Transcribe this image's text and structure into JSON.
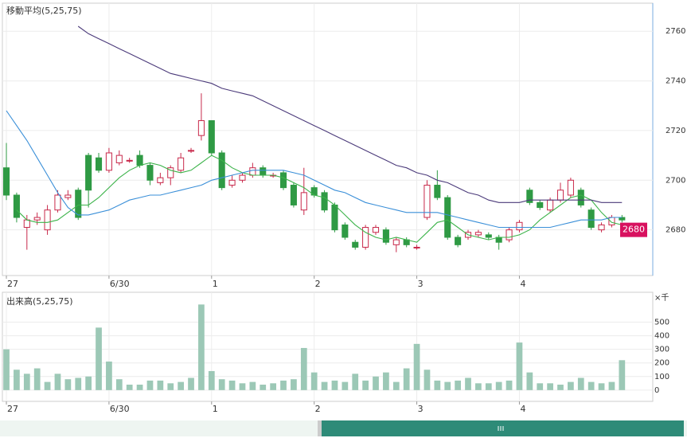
{
  "chart_data": [
    {
      "type": "candlestick",
      "title": "移動平均(5,25,75)",
      "x": [
        0,
        0.1,
        0.2,
        0.3,
        0.4,
        0.5,
        0.6,
        0.7,
        0.8,
        0.9,
        1,
        1.1,
        1.2,
        1.3,
        1.4,
        1.5,
        1.6,
        1.7,
        1.8,
        1.9,
        2,
        2.1,
        2.2,
        2.3,
        2.4,
        2.5,
        2.6,
        2.7,
        2.8,
        2.9,
        3,
        3.1,
        3.2,
        3.3,
        3.4,
        3.5,
        3.6,
        3.7,
        3.8,
        3.9,
        4,
        4.1,
        4.2,
        4.3,
        4.4,
        4.5,
        4.6,
        4.7,
        4.8,
        4.9,
        5,
        5.1,
        5.2,
        5.3,
        5.4,
        5.5,
        5.6,
        5.7,
        5.8,
        5.9,
        6
      ],
      "open": [
        2705,
        2694,
        2681,
        2684,
        2680,
        2688,
        2693,
        2696,
        2710,
        2709,
        2704,
        2707,
        2708,
        2710,
        2706,
        2699,
        2701,
        2704,
        2712,
        2718,
        2724,
        2711,
        2698,
        2700,
        2702,
        2705,
        2702,
        2703,
        2698,
        2688,
        2697,
        2695,
        2690,
        2682,
        2675,
        2673,
        2679,
        2680,
        2674,
        2676,
        2673,
        2685,
        2698,
        2693,
        2677,
        2677,
        2678,
        2678,
        2677,
        2676,
        2680,
        2696,
        2691,
        2688,
        2692,
        2694,
        2696,
        2688,
        2680,
        2682,
        2685
      ],
      "high": [
        2715,
        2695,
        2686,
        2687,
        2690,
        2696,
        2696,
        2697,
        2711,
        2711,
        2713,
        2712,
        2709,
        2712,
        2707,
        2703,
        2706,
        2711,
        2713,
        2735,
        2724,
        2712,
        2702,
        2703,
        2707,
        2706,
        2703,
        2704,
        2699,
        2705,
        2698,
        2696,
        2691,
        2683,
        2676,
        2682,
        2682,
        2681,
        2677,
        2677,
        2674,
        2700,
        2704,
        2694,
        2678,
        2680,
        2680,
        2679,
        2678,
        2681,
        2684,
        2697,
        2692,
        2693,
        2699,
        2701,
        2697,
        2689,
        2683,
        2686,
        2686
      ],
      "low": [
        2692,
        2683,
        2672,
        2682,
        2678,
        2687,
        2692,
        2684,
        2689,
        2703,
        2703,
        2706,
        2707,
        2705,
        2698,
        2698,
        2698,
        2703,
        2711,
        2716,
        2710,
        2696,
        2697,
        2699,
        2701,
        2701,
        2701,
        2696,
        2689,
        2686,
        2693,
        2687,
        2679,
        2676,
        2672,
        2672,
        2678,
        2674,
        2671,
        2673,
        2672,
        2684,
        2692,
        2676,
        2673,
        2676,
        2677,
        2676,
        2672,
        2675,
        2679,
        2690,
        2688,
        2687,
        2691,
        2693,
        2689,
        2680,
        2679,
        2681,
        2683
      ],
      "close": [
        2694,
        2685,
        2684,
        2685,
        2688,
        2694,
        2694,
        2685,
        2696,
        2704,
        2711,
        2710,
        2708,
        2706,
        2700,
        2701,
        2705,
        2709,
        2712,
        2724,
        2711,
        2697,
        2700,
        2702,
        2705,
        2702,
        2702,
        2697,
        2690,
        2695,
        2694,
        2688,
        2680,
        2677,
        2673,
        2681,
        2681,
        2675,
        2676,
        2674,
        2673,
        2698,
        2693,
        2677,
        2674,
        2679,
        2679,
        2677,
        2675,
        2680,
        2683,
        2691,
        2689,
        2692,
        2696,
        2700,
        2690,
        2681,
        2682,
        2685,
        2684
      ],
      "up_color": "#c8284a",
      "down_color": "#2f9a44",
      "series": [
        {
          "color": "#3cb34a",
          "values": [
            null,
            2688,
            2684,
            2683,
            2683,
            2684,
            2687,
            2690,
            2690,
            2693,
            2697,
            2701,
            2704,
            2706,
            2707,
            2706,
            2704,
            2703,
            2704,
            2707,
            2710,
            2708,
            2705,
            2703,
            2702,
            2702,
            2702,
            2701,
            2699,
            2697,
            2694,
            2693,
            2690,
            2686,
            2682,
            2679,
            2677,
            2676,
            2677,
            2676,
            2675,
            2679,
            2683,
            2684,
            2681,
            2678,
            2677,
            2676,
            2677,
            2677,
            2678,
            2680,
            2684,
            2687,
            2690,
            2693,
            2694,
            2692,
            2687,
            2683,
            2682
          ]
        },
        {
          "color": "#3a8fd8",
          "values": [
            2728,
            2722,
            2716,
            2709,
            2702,
            2695,
            2689,
            2686,
            2686,
            2687,
            2688,
            2690,
            2692,
            2693,
            2694,
            2694,
            2695,
            2696,
            2697,
            2698,
            2700,
            2701,
            2702,
            2703,
            2704,
            2704,
            2704,
            2704,
            2703,
            2702,
            2700,
            2698,
            2696,
            2695,
            2693,
            2691,
            2690,
            2689,
            2688,
            2687,
            2687,
            2687,
            2687,
            2686,
            2685,
            2684,
            2683,
            2682,
            2681,
            2681,
            2681,
            2681,
            2681,
            2681,
            2682,
            2683,
            2684,
            2684,
            2684,
            2685,
            2685
          ]
        },
        {
          "color": "#4b3a7a",
          "values": [
            null,
            null,
            null,
            null,
            null,
            null,
            null,
            2762,
            2759,
            2757,
            2755,
            2753,
            2751,
            2749,
            2747,
            2745,
            2743,
            2742,
            2741,
            2740,
            2739,
            2737,
            2736,
            2735,
            2734,
            2732,
            2730,
            2728,
            2726,
            2724,
            2722,
            2720,
            2718,
            2716,
            2714,
            2712,
            2710,
            2708,
            2706,
            2705,
            2703,
            2702,
            2700,
            2699,
            2697,
            2695,
            2694,
            2692,
            2691,
            2691,
            2691,
            2692,
            2692,
            2692,
            2692,
            2692,
            2692,
            2692,
            2691,
            2691,
            2691
          ]
        }
      ],
      "current_price": 2680,
      "current_price_color": "#d8115f",
      "xlim": [
        -0.039,
        6.3
      ],
      "xticks": [
        {
          "value": 0,
          "label": "27"
        },
        {
          "value": 1,
          "label": "6/30"
        },
        {
          "value": 2,
          "label": "1"
        },
        {
          "value": 3,
          "label": "2"
        },
        {
          "value": 4,
          "label": "3"
        },
        {
          "value": 5,
          "label": "4"
        }
      ],
      "ylim": [
        2661.6,
        2771.3
      ],
      "yticks": [
        2680,
        2700,
        2720,
        2740,
        2760
      ],
      "grid": true
    },
    {
      "type": "bar",
      "title": "出来高(5,25,75)",
      "y_unit": "×千",
      "color": "#9cc8b6",
      "x": [
        0,
        0.1,
        0.2,
        0.3,
        0.4,
        0.5,
        0.6,
        0.7,
        0.8,
        0.9,
        1,
        1.1,
        1.2,
        1.3,
        1.4,
        1.5,
        1.6,
        1.7,
        1.8,
        1.9,
        2,
        2.1,
        2.2,
        2.3,
        2.4,
        2.5,
        2.6,
        2.7,
        2.8,
        2.9,
        3,
        3.1,
        3.2,
        3.3,
        3.4,
        3.5,
        3.6,
        3.7,
        3.8,
        3.9,
        4,
        4.1,
        4.2,
        4.3,
        4.4,
        4.5,
        4.6,
        4.7,
        4.8,
        4.9,
        5,
        5.1,
        5.2,
        5.3,
        5.4,
        5.5,
        5.6,
        5.7,
        5.8,
        5.9,
        6
      ],
      "values": [
        300,
        150,
        120,
        160,
        60,
        120,
        80,
        90,
        100,
        460,
        210,
        80,
        40,
        40,
        70,
        70,
        50,
        60,
        90,
        630,
        140,
        80,
        70,
        50,
        60,
        40,
        50,
        70,
        80,
        310,
        130,
        60,
        70,
        60,
        120,
        70,
        100,
        130,
        60,
        160,
        340,
        150,
        70,
        60,
        70,
        90,
        50,
        50,
        60,
        70,
        350,
        130,
        50,
        50,
        40,
        60,
        90,
        60,
        50,
        60,
        220
      ],
      "xlim": [
        -0.039,
        6.3
      ],
      "xticks": [
        {
          "value": 0,
          "label": "27"
        },
        {
          "value": 1,
          "label": "6/30"
        },
        {
          "value": 2,
          "label": "1"
        },
        {
          "value": 3,
          "label": "2"
        },
        {
          "value": 4,
          "label": "3"
        },
        {
          "value": 5,
          "label": "4"
        }
      ],
      "ylim": [
        -83,
        720
      ],
      "yticks": [
        0,
        100,
        200,
        300,
        400,
        500
      ],
      "grid": true
    }
  ]
}
